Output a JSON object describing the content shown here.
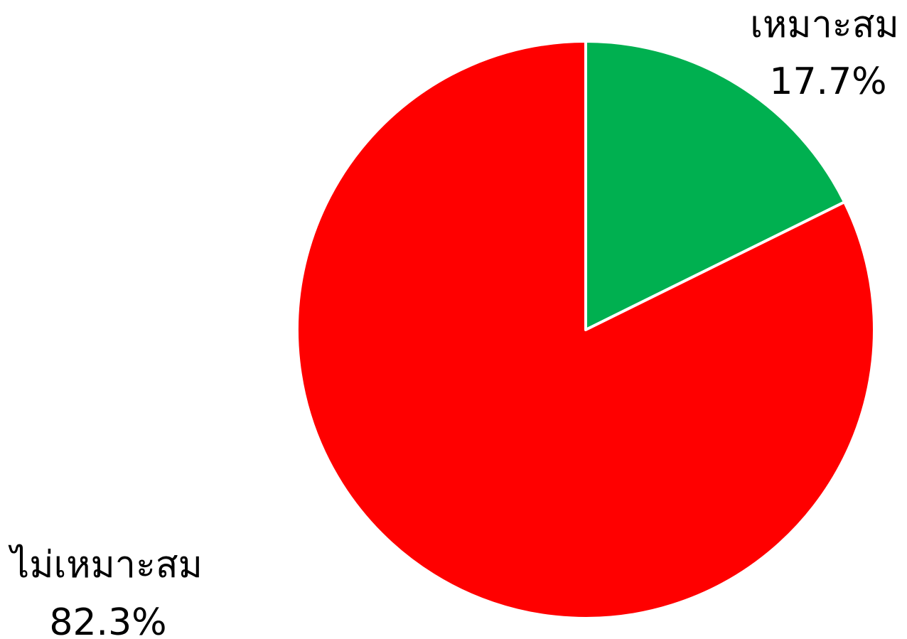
{
  "chart_data": {
    "type": "pie",
    "start_angle_deg": 0,
    "direction": "clockwise",
    "slices": [
      {
        "label": "เหมาะสม",
        "percent_label": "17.7%",
        "value": 17.7,
        "color": "#00b050"
      },
      {
        "label": "ไม่เหมาะสม",
        "percent_label": "82.3%",
        "value": 82.3,
        "color": "#ff0000"
      }
    ],
    "slice_border_color": "#ffffff",
    "legend": "none"
  }
}
